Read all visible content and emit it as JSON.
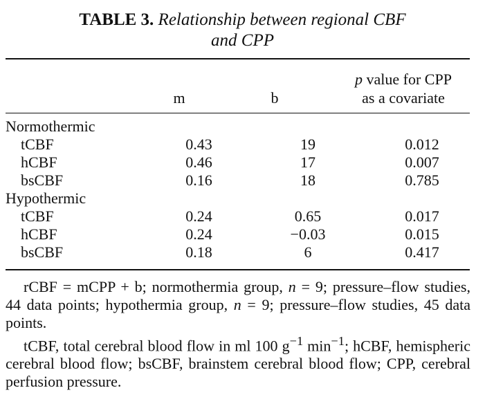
{
  "caption": {
    "label": "TABLE 3.",
    "title_line1": "Relationship between regional CBF",
    "title_line2": "and CPP"
  },
  "headers": {
    "m": "m",
    "b": "b",
    "p_italic": "p",
    "p_rest1": " value for CPP",
    "p_line2": "as a covariate"
  },
  "groups": [
    {
      "name": "Normothermic",
      "rows": [
        {
          "region": "tCBF",
          "m": "0.43",
          "b": "19",
          "p": "0.012"
        },
        {
          "region": "hCBF",
          "m": "0.46",
          "b": "17",
          "p": "0.007"
        },
        {
          "region": "bsCBF",
          "m": "0.16",
          "b": "18",
          "p": "0.785"
        }
      ]
    },
    {
      "name": "Hypothermic",
      "rows": [
        {
          "region": "tCBF",
          "m": "0.24",
          "b": "0.65",
          "p": "0.017"
        },
        {
          "region": "hCBF",
          "m": "0.24",
          "b": "−0.03",
          "p": "0.015"
        },
        {
          "region": "bsCBF",
          "m": "0.18",
          "b": "6",
          "p": "0.417"
        }
      ]
    }
  ],
  "notes": {
    "n1_a": "rCBF = mCPP + b; normothermia group, ",
    "n_sym": "n",
    "n1_b": " = 9; pressure–flow studies, 44 data points; hypothermia group, ",
    "n1_c": " = 9; pressure–flow studies, 45 data points.",
    "n2_a": "tCBF, total cerebral blood flow in ml 100 g",
    "sup1": "−1",
    "n2_b": " min",
    "sup2": "−1",
    "n2_c": "; hCBF, hemispheric cerebral blood flow; bsCBF, brainstem cerebral blood flow; CPP, cerebral perfusion pressure."
  }
}
